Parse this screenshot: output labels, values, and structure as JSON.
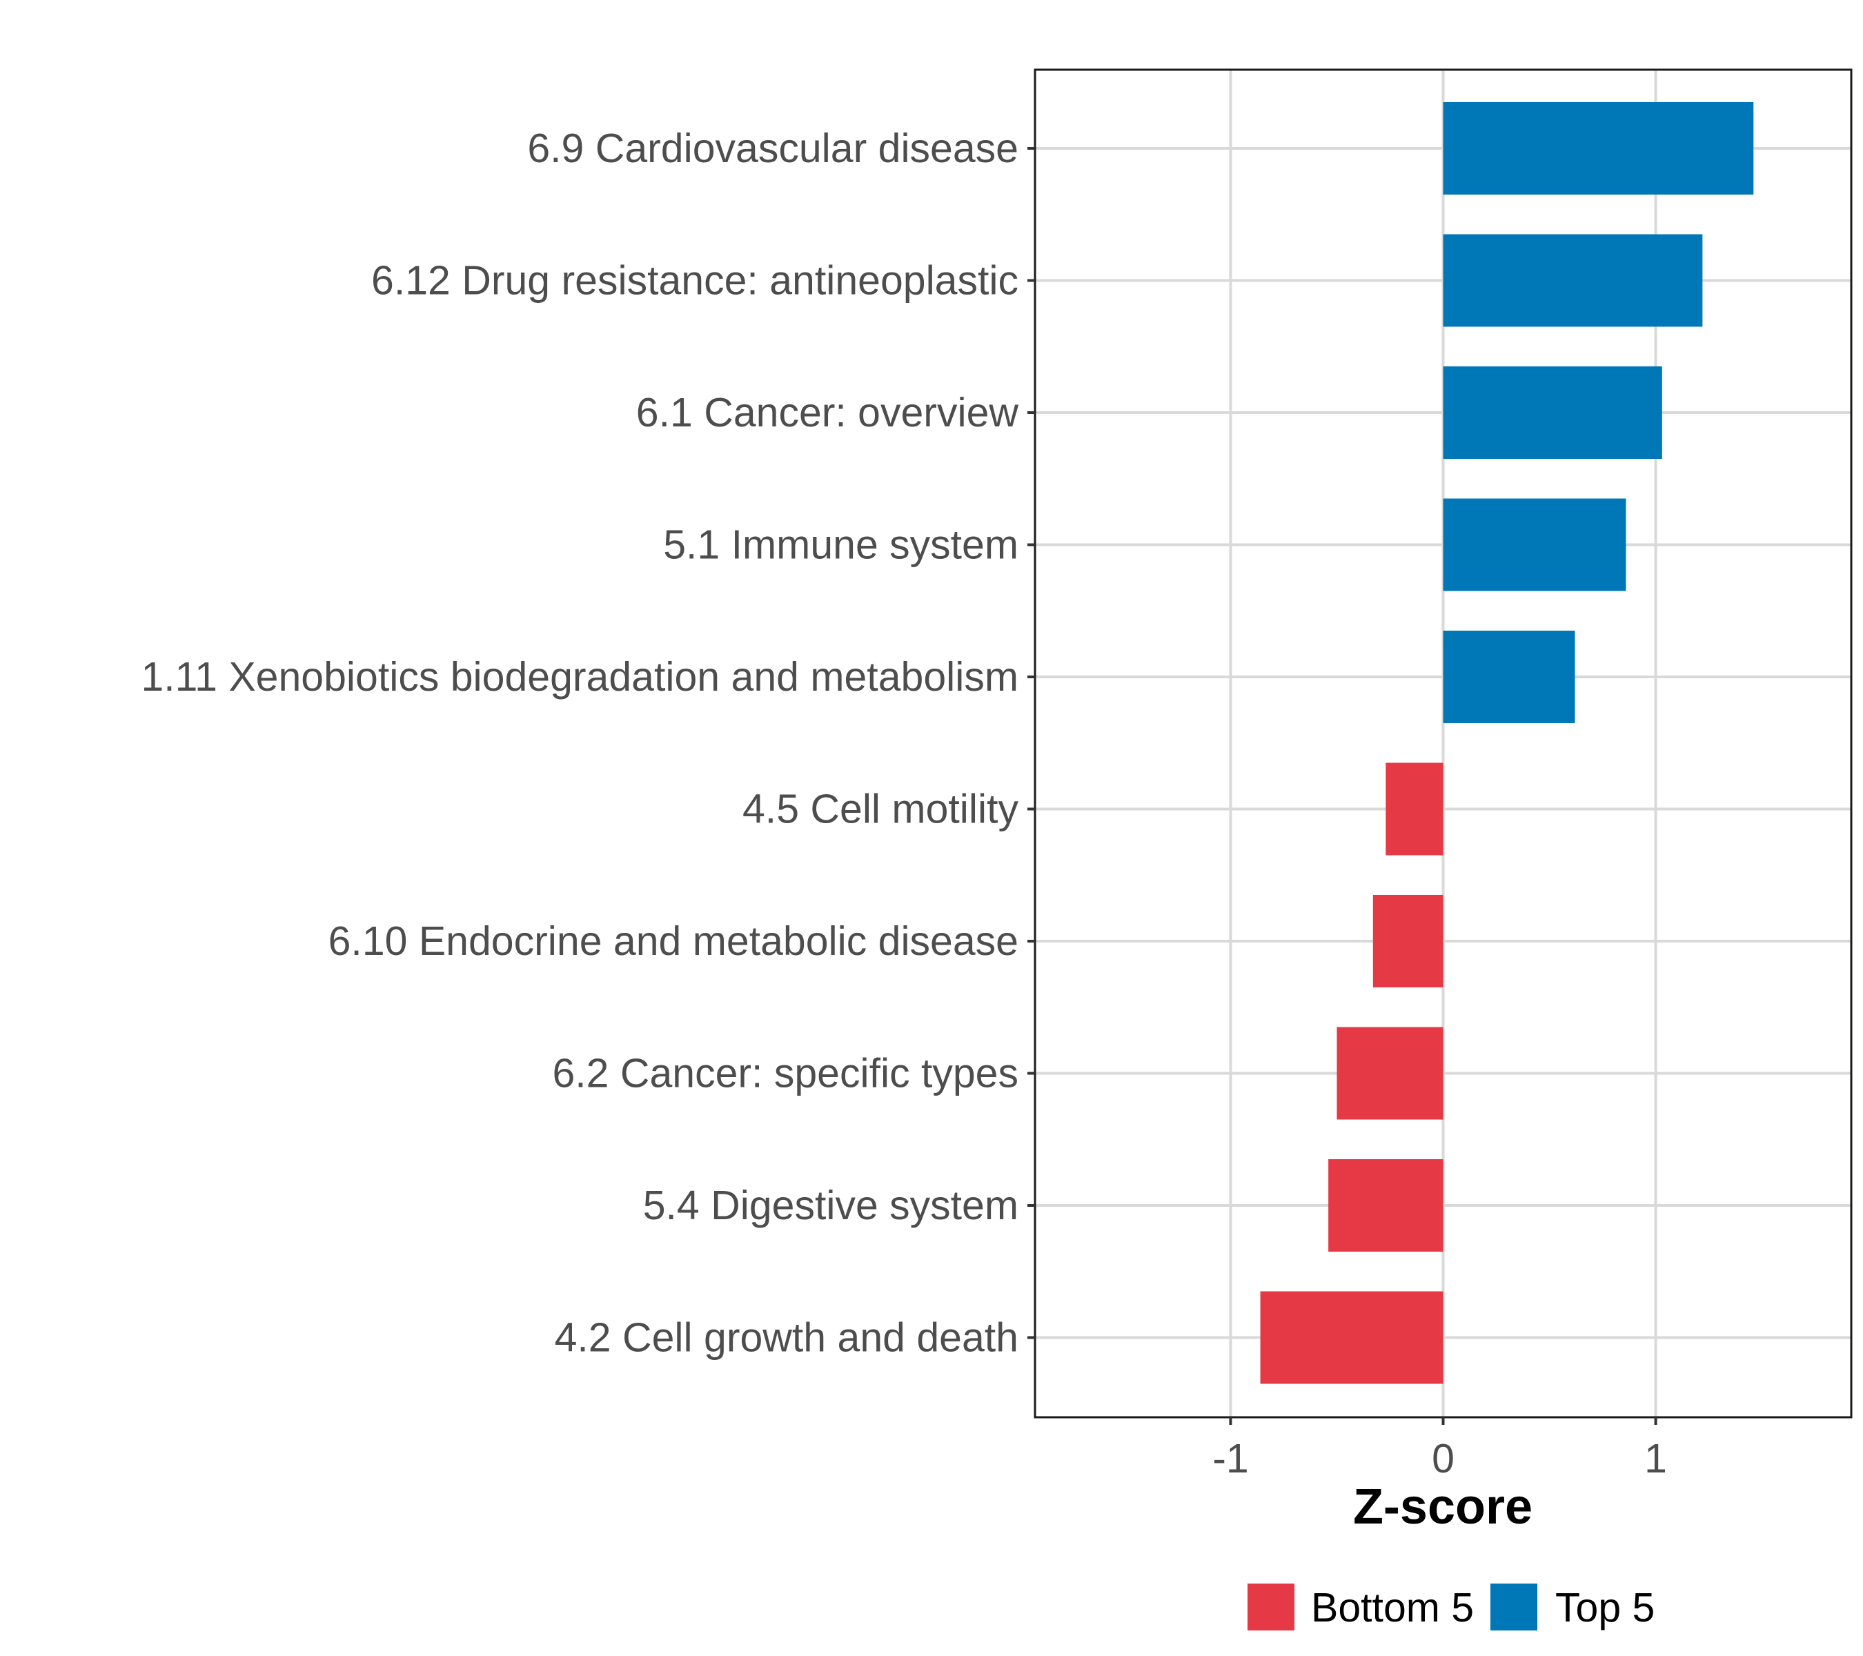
{
  "chart_data": {
    "type": "bar",
    "orientation": "horizontal",
    "xlabel": "Z-score",
    "xlim": [
      -1.92,
      1.92
    ],
    "xticks": [
      -1,
      0,
      1
    ],
    "xtick_labels": [
      "-1",
      "0",
      "1"
    ],
    "grid": true,
    "categories": [
      "6.9 Cardiovascular disease",
      "6.12 Drug resistance: antineoplastic",
      "6.1 Cancer: overview",
      "5.1 Immune system",
      "1.11 Xenobiotics biodegradation and metabolism",
      "4.5 Cell motility",
      "6.10 Endocrine and metabolic disease",
      "6.2 Cancer: specific types",
      "5.4 Digestive system",
      "4.2 Cell growth and death"
    ],
    "values": [
      1.46,
      1.22,
      1.03,
      0.86,
      0.62,
      -0.27,
      -0.33,
      -0.5,
      -0.54,
      -0.86
    ],
    "groups": [
      "Top 5",
      "Top 5",
      "Top 5",
      "Top 5",
      "Top 5",
      "Bottom 5",
      "Bottom 5",
      "Bottom 5",
      "Bottom 5",
      "Bottom 5"
    ],
    "legend": {
      "position": "bottom",
      "entries": [
        {
          "label": "Bottom 5",
          "color": "#e63946"
        },
        {
          "label": "Top 5",
          "color": "#0077b6"
        }
      ]
    },
    "colors": {
      "Top 5": "#0077b6",
      "Bottom 5": "#e63946"
    }
  }
}
